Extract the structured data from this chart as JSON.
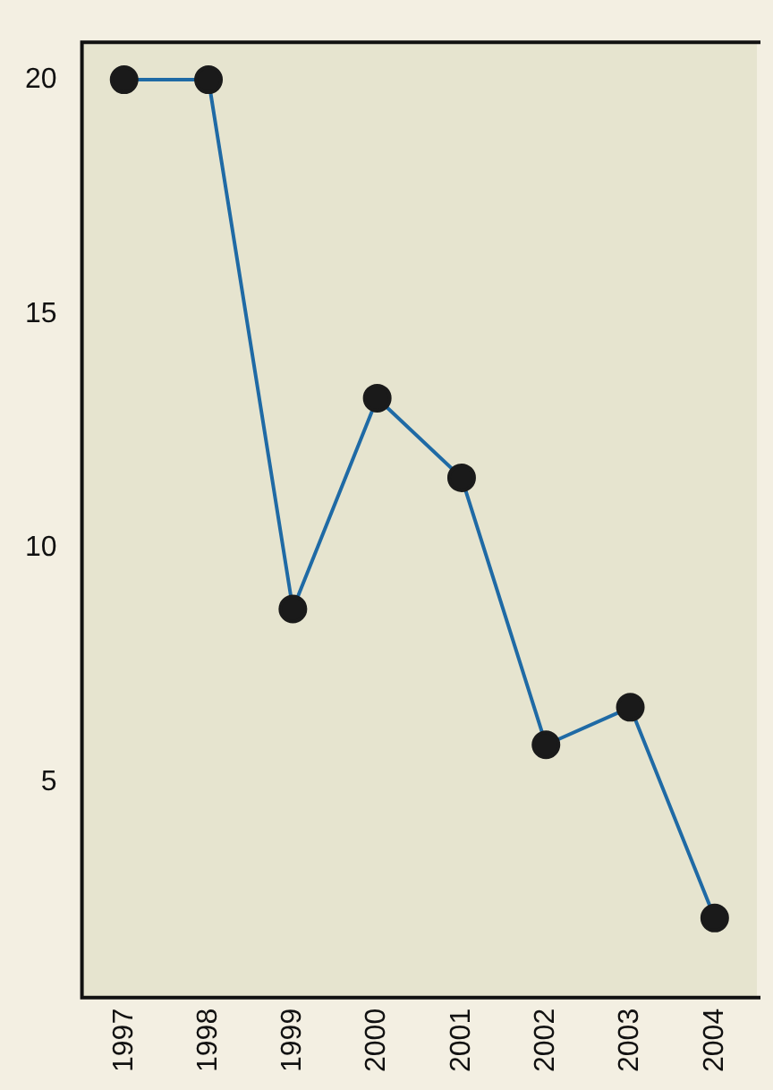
{
  "chart_data": {
    "type": "line",
    "categories": [
      "1997",
      "1998",
      "1999",
      "2000",
      "2001",
      "2002",
      "2003",
      "2004"
    ],
    "series": [
      {
        "color": "#1f6aa5",
        "values": [
          20,
          20,
          8.7,
          13.2,
          11.5,
          5.8,
          6.6,
          2.1
        ]
      }
    ],
    "ylim": [
      0.4,
      20.8
    ],
    "yticks": [
      5,
      10,
      15,
      20
    ],
    "grid": false,
    "legend": false,
    "marker": "circle",
    "line_style": "solid"
  }
}
